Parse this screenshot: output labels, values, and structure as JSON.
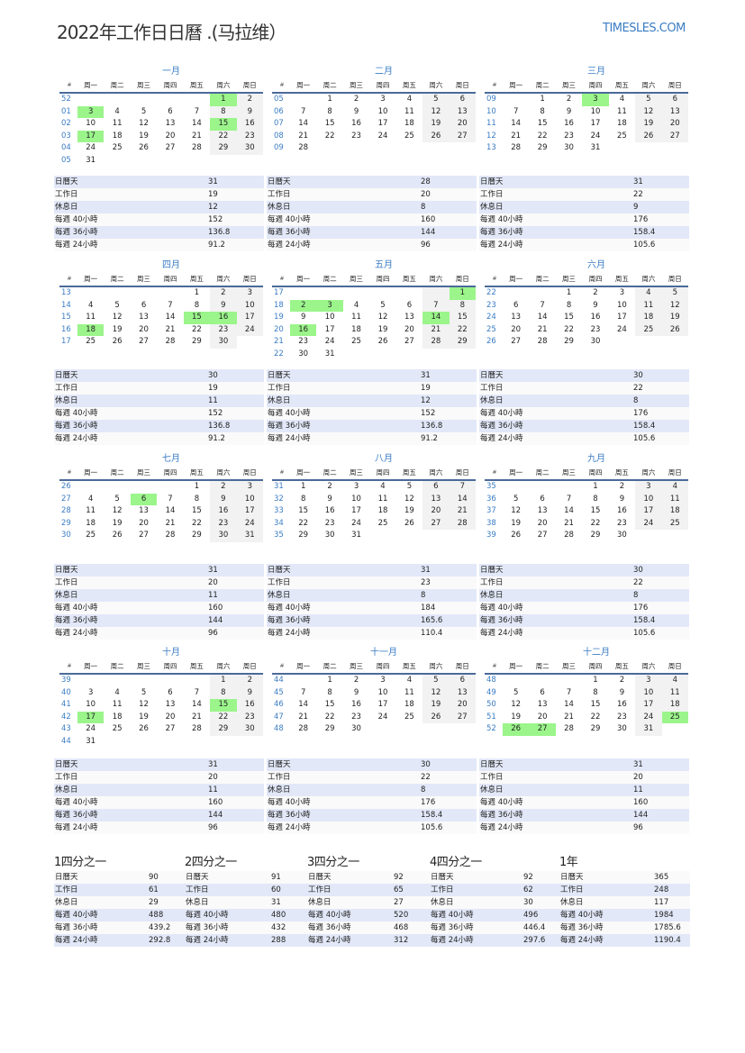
{
  "title": "2022年工作日日曆 .(马拉维）",
  "logo": "TIMESLES.COM",
  "week_header": [
    "#",
    "周一",
    "周二",
    "周三",
    "周四",
    "周五",
    "周六",
    "周日"
  ],
  "stat_labels": [
    "日曆天",
    "工作日",
    "休息日",
    "每週 40小時",
    "每週 36小時",
    "每週 24小時"
  ],
  "colors": {
    "accent": "#3a7cc4",
    "holiday": "#9bf58b",
    "weekend": "#f2f2f2",
    "stripe": "#e2e8f8"
  },
  "months": [
    {
      "name": "一月",
      "weeks": [
        "52",
        "01",
        "02",
        "03",
        "04",
        "05"
      ],
      "first_weekday": 5,
      "days": 31,
      "holidays": [
        1,
        3,
        15,
        17
      ],
      "stats": [
        "31",
        "19",
        "12",
        "152",
        "136.8",
        "91.2"
      ]
    },
    {
      "name": "二月",
      "weeks": [
        "05",
        "06",
        "07",
        "08",
        "09"
      ],
      "first_weekday": 1,
      "days": 28,
      "holidays": [],
      "stats": [
        "28",
        "20",
        "8",
        "160",
        "144",
        "96"
      ]
    },
    {
      "name": "三月",
      "weeks": [
        "09",
        "10",
        "11",
        "12",
        "13"
      ],
      "first_weekday": 1,
      "days": 31,
      "holidays": [
        3
      ],
      "stats": [
        "31",
        "22",
        "9",
        "176",
        "158.4",
        "105.6"
      ]
    },
    {
      "name": "四月",
      "weeks": [
        "13",
        "14",
        "15",
        "16",
        "17"
      ],
      "first_weekday": 4,
      "days": 30,
      "holidays": [
        15,
        16,
        18
      ],
      "stats": [
        "30",
        "19",
        "11",
        "152",
        "136.8",
        "91.2"
      ]
    },
    {
      "name": "五月",
      "weeks": [
        "17",
        "18",
        "19",
        "20",
        "21",
        "22"
      ],
      "first_weekday": 6,
      "days": 31,
      "holidays": [
        1,
        2,
        3,
        14,
        16
      ],
      "stats": [
        "31",
        "19",
        "12",
        "152",
        "136.8",
        "91.2"
      ]
    },
    {
      "name": "六月",
      "weeks": [
        "22",
        "23",
        "24",
        "25",
        "26"
      ],
      "first_weekday": 2,
      "days": 30,
      "holidays": [],
      "stats": [
        "30",
        "22",
        "8",
        "176",
        "158.4",
        "105.6"
      ]
    },
    {
      "name": "七月",
      "weeks": [
        "26",
        "27",
        "28",
        "29",
        "30"
      ],
      "first_weekday": 4,
      "days": 31,
      "holidays": [
        6
      ],
      "stats": [
        "31",
        "20",
        "11",
        "160",
        "144",
        "96"
      ]
    },
    {
      "name": "八月",
      "weeks": [
        "31",
        "32",
        "33",
        "34",
        "35"
      ],
      "first_weekday": 0,
      "days": 31,
      "holidays": [],
      "stats": [
        "31",
        "23",
        "8",
        "184",
        "165.6",
        "110.4"
      ]
    },
    {
      "name": "九月",
      "weeks": [
        "35",
        "36",
        "37",
        "38",
        "39"
      ],
      "first_weekday": 3,
      "days": 30,
      "holidays": [],
      "stats": [
        "30",
        "22",
        "8",
        "176",
        "158.4",
        "105.6"
      ]
    },
    {
      "name": "十月",
      "weeks": [
        "39",
        "40",
        "41",
        "42",
        "43",
        "44"
      ],
      "first_weekday": 5,
      "days": 31,
      "holidays": [
        15,
        17
      ],
      "stats": [
        "31",
        "20",
        "11",
        "160",
        "144",
        "96"
      ]
    },
    {
      "name": "十一月",
      "weeks": [
        "44",
        "45",
        "46",
        "47",
        "48"
      ],
      "first_weekday": 1,
      "days": 30,
      "holidays": [],
      "stats": [
        "30",
        "22",
        "8",
        "176",
        "158.4",
        "105.6"
      ]
    },
    {
      "name": "十二月",
      "weeks": [
        "48",
        "49",
        "50",
        "51",
        "52"
      ],
      "first_weekday": 3,
      "days": 31,
      "holidays": [
        25,
        26,
        27
      ],
      "stats": [
        "31",
        "20",
        "11",
        "160",
        "144",
        "96"
      ]
    }
  ],
  "summaries": [
    {
      "title": "1四分之一",
      "stats": [
        "90",
        "61",
        "29",
        "488",
        "439.2",
        "292.8"
      ]
    },
    {
      "title": "2四分之一",
      "stats": [
        "91",
        "60",
        "31",
        "480",
        "432",
        "288"
      ]
    },
    {
      "title": "3四分之一",
      "stats": [
        "92",
        "65",
        "27",
        "520",
        "468",
        "312"
      ]
    },
    {
      "title": "4四分之一",
      "stats": [
        "92",
        "62",
        "30",
        "496",
        "446.4",
        "297.6"
      ]
    },
    {
      "title": "1年",
      "stats": [
        "365",
        "248",
        "117",
        "1984",
        "1785.6",
        "1190.4"
      ]
    }
  ]
}
